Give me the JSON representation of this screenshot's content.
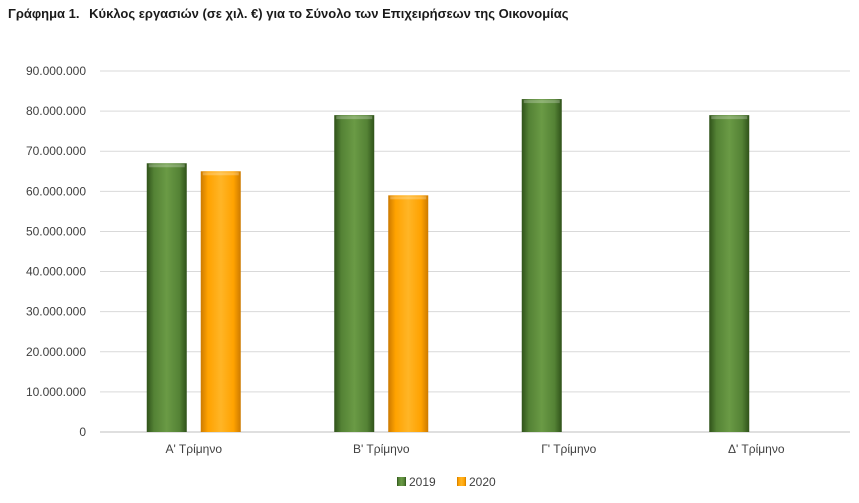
{
  "title": {
    "number": "Γράφημα 1",
    "text": "Κύκλος εργασιών (σε χιλ. €) για το Σύνολο των Επιχειρήσεων της Οικονομίας"
  },
  "chart_data": {
    "type": "bar",
    "categories": [
      "Α' Τρίμηνο",
      "Β' Τρίμηνο",
      "Γ' Τρίμηνο",
      "Δ' Τρίμηνο"
    ],
    "series": [
      {
        "name": "2019",
        "values": [
          67000000,
          79000000,
          83000000,
          79000000
        ],
        "color": "#548235"
      },
      {
        "name": "2020",
        "values": [
          65000000,
          59000000,
          null,
          null
        ],
        "color": "#ffa200"
      }
    ],
    "ylim": [
      0,
      90000000
    ],
    "yticks": [
      0,
      10000000,
      20000000,
      30000000,
      40000000,
      50000000,
      60000000,
      70000000,
      80000000,
      90000000
    ],
    "ytick_labels": [
      "0",
      "10.000.000",
      "20.000.000",
      "30.000.000",
      "40.000.000",
      "50.000.000",
      "60.000.000",
      "70.000.000",
      "80.000.000",
      "90.000.000"
    ],
    "grid": true,
    "legend": "bottom-center"
  }
}
